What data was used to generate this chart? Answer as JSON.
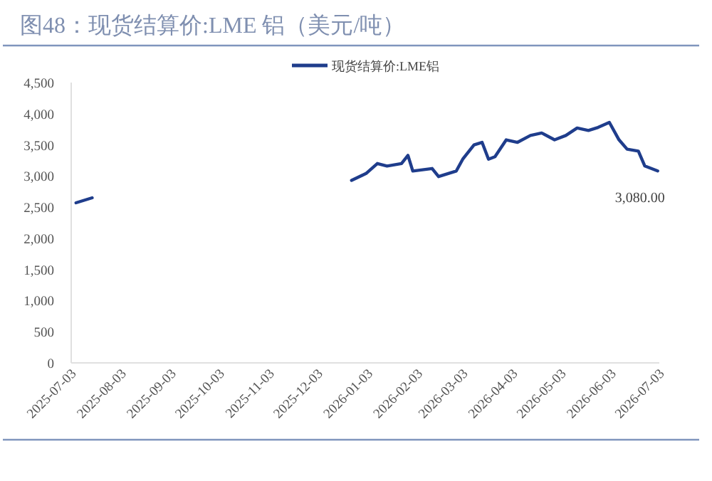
{
  "chart_data": {
    "type": "line",
    "title": "图48：现货结算价:LME 铝（美元/吨）",
    "x": [
      "2025-07-06",
      "2025-07-16",
      "2025-12-15",
      "2025-12-24",
      "2026-01-02",
      "2026-01-09",
      "2026-01-15",
      "2026-01-24",
      "2026-01-28",
      "2026-01-31",
      "2026-02-12",
      "2026-02-16",
      "2026-02-27",
      "2026-03-03",
      "2026-03-10",
      "2026-03-15",
      "2026-03-19",
      "2026-03-23",
      "2026-03-30",
      "2026-04-06",
      "2026-04-14",
      "2026-04-21",
      "2026-04-29",
      "2026-05-06",
      "2026-05-13",
      "2026-05-20",
      "2026-05-26",
      "2026-06-02",
      "2026-06-08",
      "2026-06-13",
      "2026-06-20",
      "2026-06-24",
      "2026-07-02"
    ],
    "series": [
      {
        "name": "现货结算价:LME铝",
        "color": "#1f3d8c",
        "values": [
          2570,
          2650,
          null,
          2930,
          3040,
          3200,
          3160,
          3200,
          3330,
          3080,
          3120,
          2990,
          3080,
          3270,
          3500,
          3540,
          3270,
          3310,
          3580,
          3540,
          3650,
          3690,
          3580,
          3650,
          3770,
          3730,
          3780,
          3860,
          3580,
          3430,
          3400,
          3160,
          3080
        ]
      }
    ],
    "xlim": [
      "2025-07-03",
      "2026-07-03"
    ],
    "xticks": [
      "2025-07-03",
      "2025-08-03",
      "2025-09-03",
      "2025-10-03",
      "2025-11-03",
      "2025-12-03",
      "2026-01-03",
      "2026-02-03",
      "2026-03-03",
      "2026-04-03",
      "2026-05-03",
      "2026-06-03",
      "2026-07-03"
    ],
    "ylim": [
      0,
      4500
    ],
    "yticks": [
      0,
      500,
      {
        "value": 1000,
        "label": "1,000"
      },
      {
        "value": 1500,
        "label": "1,500"
      },
      {
        "value": 2000,
        "label": "2,000"
      },
      {
        "value": 2500,
        "label": "2,500"
      },
      {
        "value": 3000,
        "label": "3,000"
      },
      {
        "value": 3500,
        "label": "3,500"
      },
      {
        "value": 4000,
        "label": "4,000"
      },
      {
        "value": 4500,
        "label": "4,500"
      }
    ],
    "legend": "top",
    "annotations": [
      {
        "text": "3,080.00",
        "x": "2026-07-02",
        "y": 3080
      }
    ]
  }
}
